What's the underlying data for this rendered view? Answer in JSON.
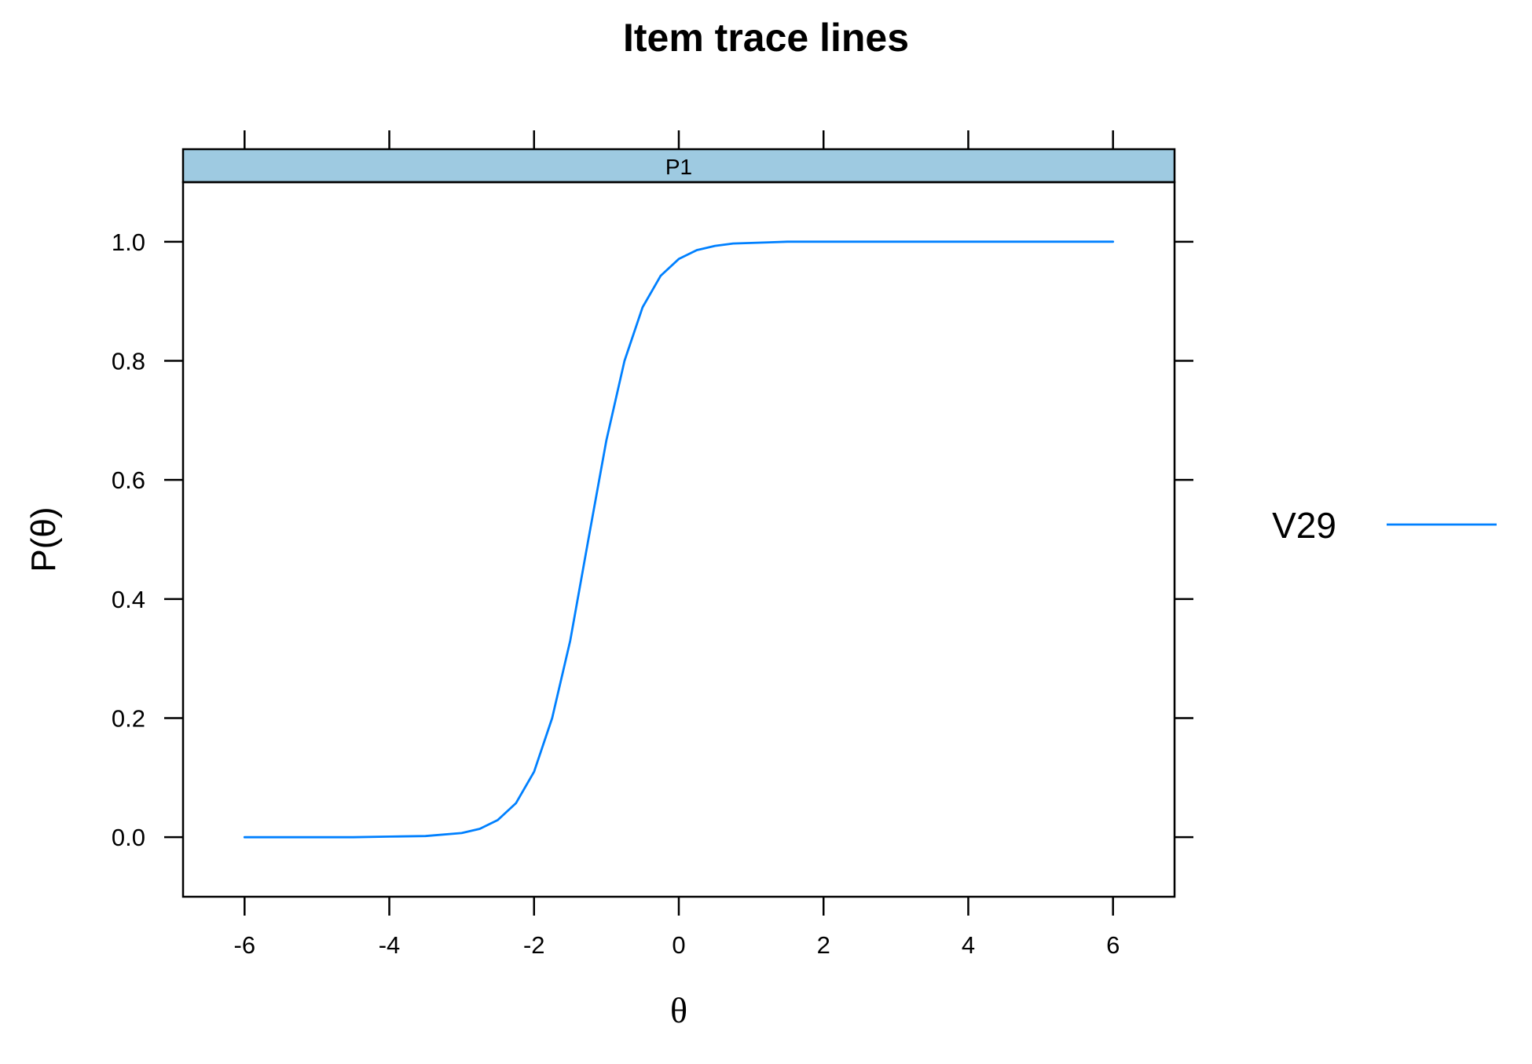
{
  "chart_data": {
    "type": "line",
    "title": "Item trace lines",
    "panel_label": "P1",
    "xlabel": "θ",
    "ylabel": "P(θ)",
    "xlim": [
      -6.85,
      6.85
    ],
    "ylim": [
      -0.1,
      1.1
    ],
    "x_ticks": [
      -6,
      -4,
      -2,
      0,
      2,
      4,
      6
    ],
    "x_tick_labels": [
      "-6",
      "-4",
      "-2",
      "0",
      "2",
      "4",
      "6"
    ],
    "y_ticks": [
      0.0,
      0.2,
      0.4,
      0.6,
      0.8,
      1.0
    ],
    "y_tick_labels": [
      "0.0",
      "0.2",
      "0.4",
      "0.6",
      "0.8",
      "1.0"
    ],
    "grid": false,
    "legend_position": "right",
    "colors": {
      "series": "#0080ff",
      "strip": "#9ecae1",
      "axis": "#000000"
    },
    "series": [
      {
        "name": "V29",
        "x": [
          -6,
          -5.5,
          -5,
          -4.5,
          -4,
          -3.5,
          -3,
          -2.75,
          -2.5,
          -2.25,
          -2,
          -1.75,
          -1.5,
          -1.25,
          -1,
          -0.75,
          -0.5,
          -0.25,
          0,
          0.25,
          0.5,
          0.75,
          1,
          1.25,
          1.5,
          2,
          3,
          4,
          5,
          6
        ],
        "y": [
          0.0,
          0.0,
          0.0,
          0.0,
          0.001,
          0.002,
          0.007,
          0.014,
          0.029,
          0.057,
          0.11,
          0.2,
          0.33,
          0.5,
          0.667,
          0.8,
          0.89,
          0.943,
          0.971,
          0.986,
          0.993,
          0.997,
          0.998,
          0.999,
          1.0,
          1.0,
          1.0,
          1.0,
          1.0,
          1.0
        ]
      }
    ]
  }
}
